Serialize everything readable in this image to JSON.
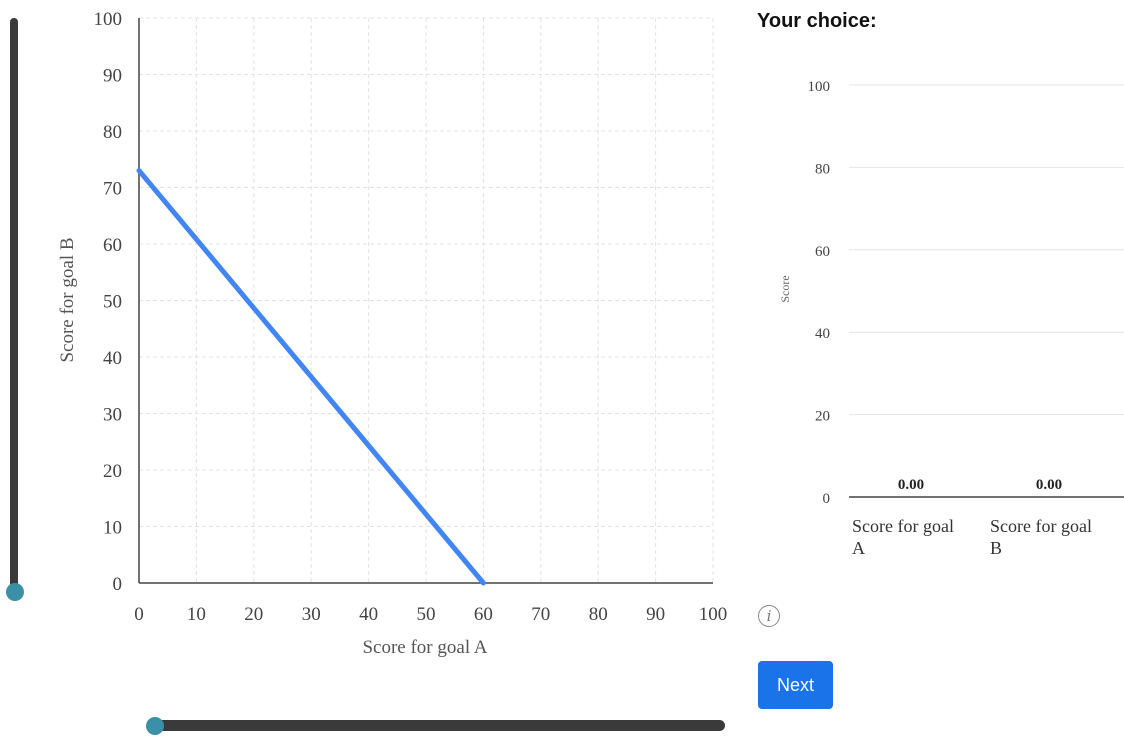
{
  "main_chart": {
    "xlabel": "Score for goal A",
    "ylabel": "Score for goal B",
    "xticks": [
      "0",
      "10",
      "20",
      "30",
      "40",
      "50",
      "60",
      "70",
      "80",
      "90",
      "100"
    ],
    "yticks": [
      "0",
      "10",
      "20",
      "30",
      "40",
      "50",
      "60",
      "70",
      "80",
      "90",
      "100"
    ],
    "line_color": "#4285f4"
  },
  "choice_panel": {
    "title": "Your choice:",
    "ylabel": "Score",
    "yticks": [
      "0",
      "20",
      "40",
      "60",
      "80",
      "100"
    ],
    "bars": [
      {
        "label_line1": "Score for goal",
        "label_line2": "A",
        "value_label": "0.00"
      },
      {
        "label_line1": "Score for goal",
        "label_line2": "B",
        "value_label": "0.00"
      }
    ]
  },
  "sliders": {
    "vertical_value": 0,
    "horizontal_value": 0
  },
  "info_icon": {
    "glyph": "i",
    "icon": "info-icon"
  },
  "next_button": {
    "label": "Next",
    "color": "#1a73e8"
  },
  "chart_data": [
    {
      "type": "line",
      "title": "",
      "xlabel": "Score for goal A",
      "ylabel": "Score for goal B",
      "xlim": [
        0,
        100
      ],
      "ylim": [
        0,
        100
      ],
      "grid": true,
      "series": [
        {
          "x": [
            0,
            60
          ],
          "y": [
            73,
            0
          ]
        }
      ]
    },
    {
      "type": "bar",
      "title": "Your choice:",
      "ylabel": "Score",
      "ylim": [
        0,
        100
      ],
      "categories": [
        "Score for goal A",
        "Score for goal B"
      ],
      "values": [
        0.0,
        0.0
      ],
      "grid": true
    }
  ]
}
